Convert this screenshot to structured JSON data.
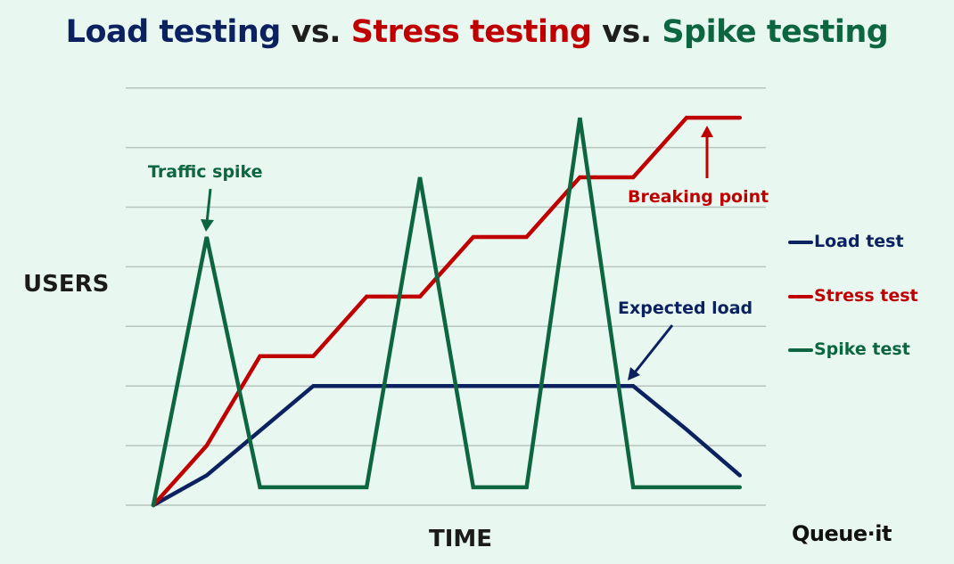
{
  "title": {
    "part1": "Load testing",
    "sep1": " vs. ",
    "part2": "Stress testing",
    "sep2": " vs. ",
    "part3": "Spike testing"
  },
  "colors": {
    "background": "#e8f8f0",
    "load": "#0c2260",
    "stress": "#c00000",
    "spike": "#0d6640",
    "grid": "#b8c4be",
    "text": "#1b1b1b"
  },
  "annotations": {
    "traffic_spike": "Traffic spike",
    "breaking_point": "Breaking point",
    "expected_load": "Expected load"
  },
  "logo": "Queue·it",
  "chart_data": {
    "type": "line",
    "title": "Load testing vs. Stress testing vs. Spike testing",
    "xlabel": "TIME",
    "ylabel": "USERS",
    "grid": true,
    "legend_position": "right",
    "x": [
      0,
      1,
      2,
      3,
      4,
      5,
      6,
      7,
      8,
      9,
      10,
      11
    ],
    "ylim": [
      0,
      7
    ],
    "series": [
      {
        "name": "Load test",
        "color": "#0c2260",
        "points": [
          [
            0,
            0
          ],
          [
            1,
            0.5
          ],
          [
            3,
            2
          ],
          [
            9,
            2
          ],
          [
            10,
            1.27
          ],
          [
            11,
            0.5
          ]
        ]
      },
      {
        "name": "Stress test",
        "color": "#c00000",
        "points": [
          [
            0,
            0
          ],
          [
            1,
            1
          ],
          [
            2,
            2.5
          ],
          [
            3,
            2.5
          ],
          [
            4,
            3.5
          ],
          [
            5,
            3.5
          ],
          [
            6,
            4.5
          ],
          [
            7,
            4.5
          ],
          [
            8,
            5.5
          ],
          [
            9,
            5.5
          ],
          [
            10,
            6.5
          ],
          [
            11,
            6.5
          ]
        ]
      },
      {
        "name": "Spike test",
        "color": "#0d6640",
        "points": [
          [
            0,
            0
          ],
          [
            1,
            4.5
          ],
          [
            2,
            0.3
          ],
          [
            4,
            0.3
          ],
          [
            5,
            5.5
          ],
          [
            6,
            0.3
          ],
          [
            7,
            0.3
          ],
          [
            8,
            6.5
          ],
          [
            9,
            0.3
          ],
          [
            11,
            0.3
          ]
        ]
      }
    ],
    "annotations": [
      {
        "text": "Traffic spike",
        "target": [
          1,
          4.5
        ],
        "series": "Spike test"
      },
      {
        "text": "Breaking point",
        "target": [
          10.4,
          6.5
        ],
        "series": "Stress test"
      },
      {
        "text": "Expected load",
        "target": [
          9,
          2
        ],
        "series": "Load test"
      }
    ]
  }
}
